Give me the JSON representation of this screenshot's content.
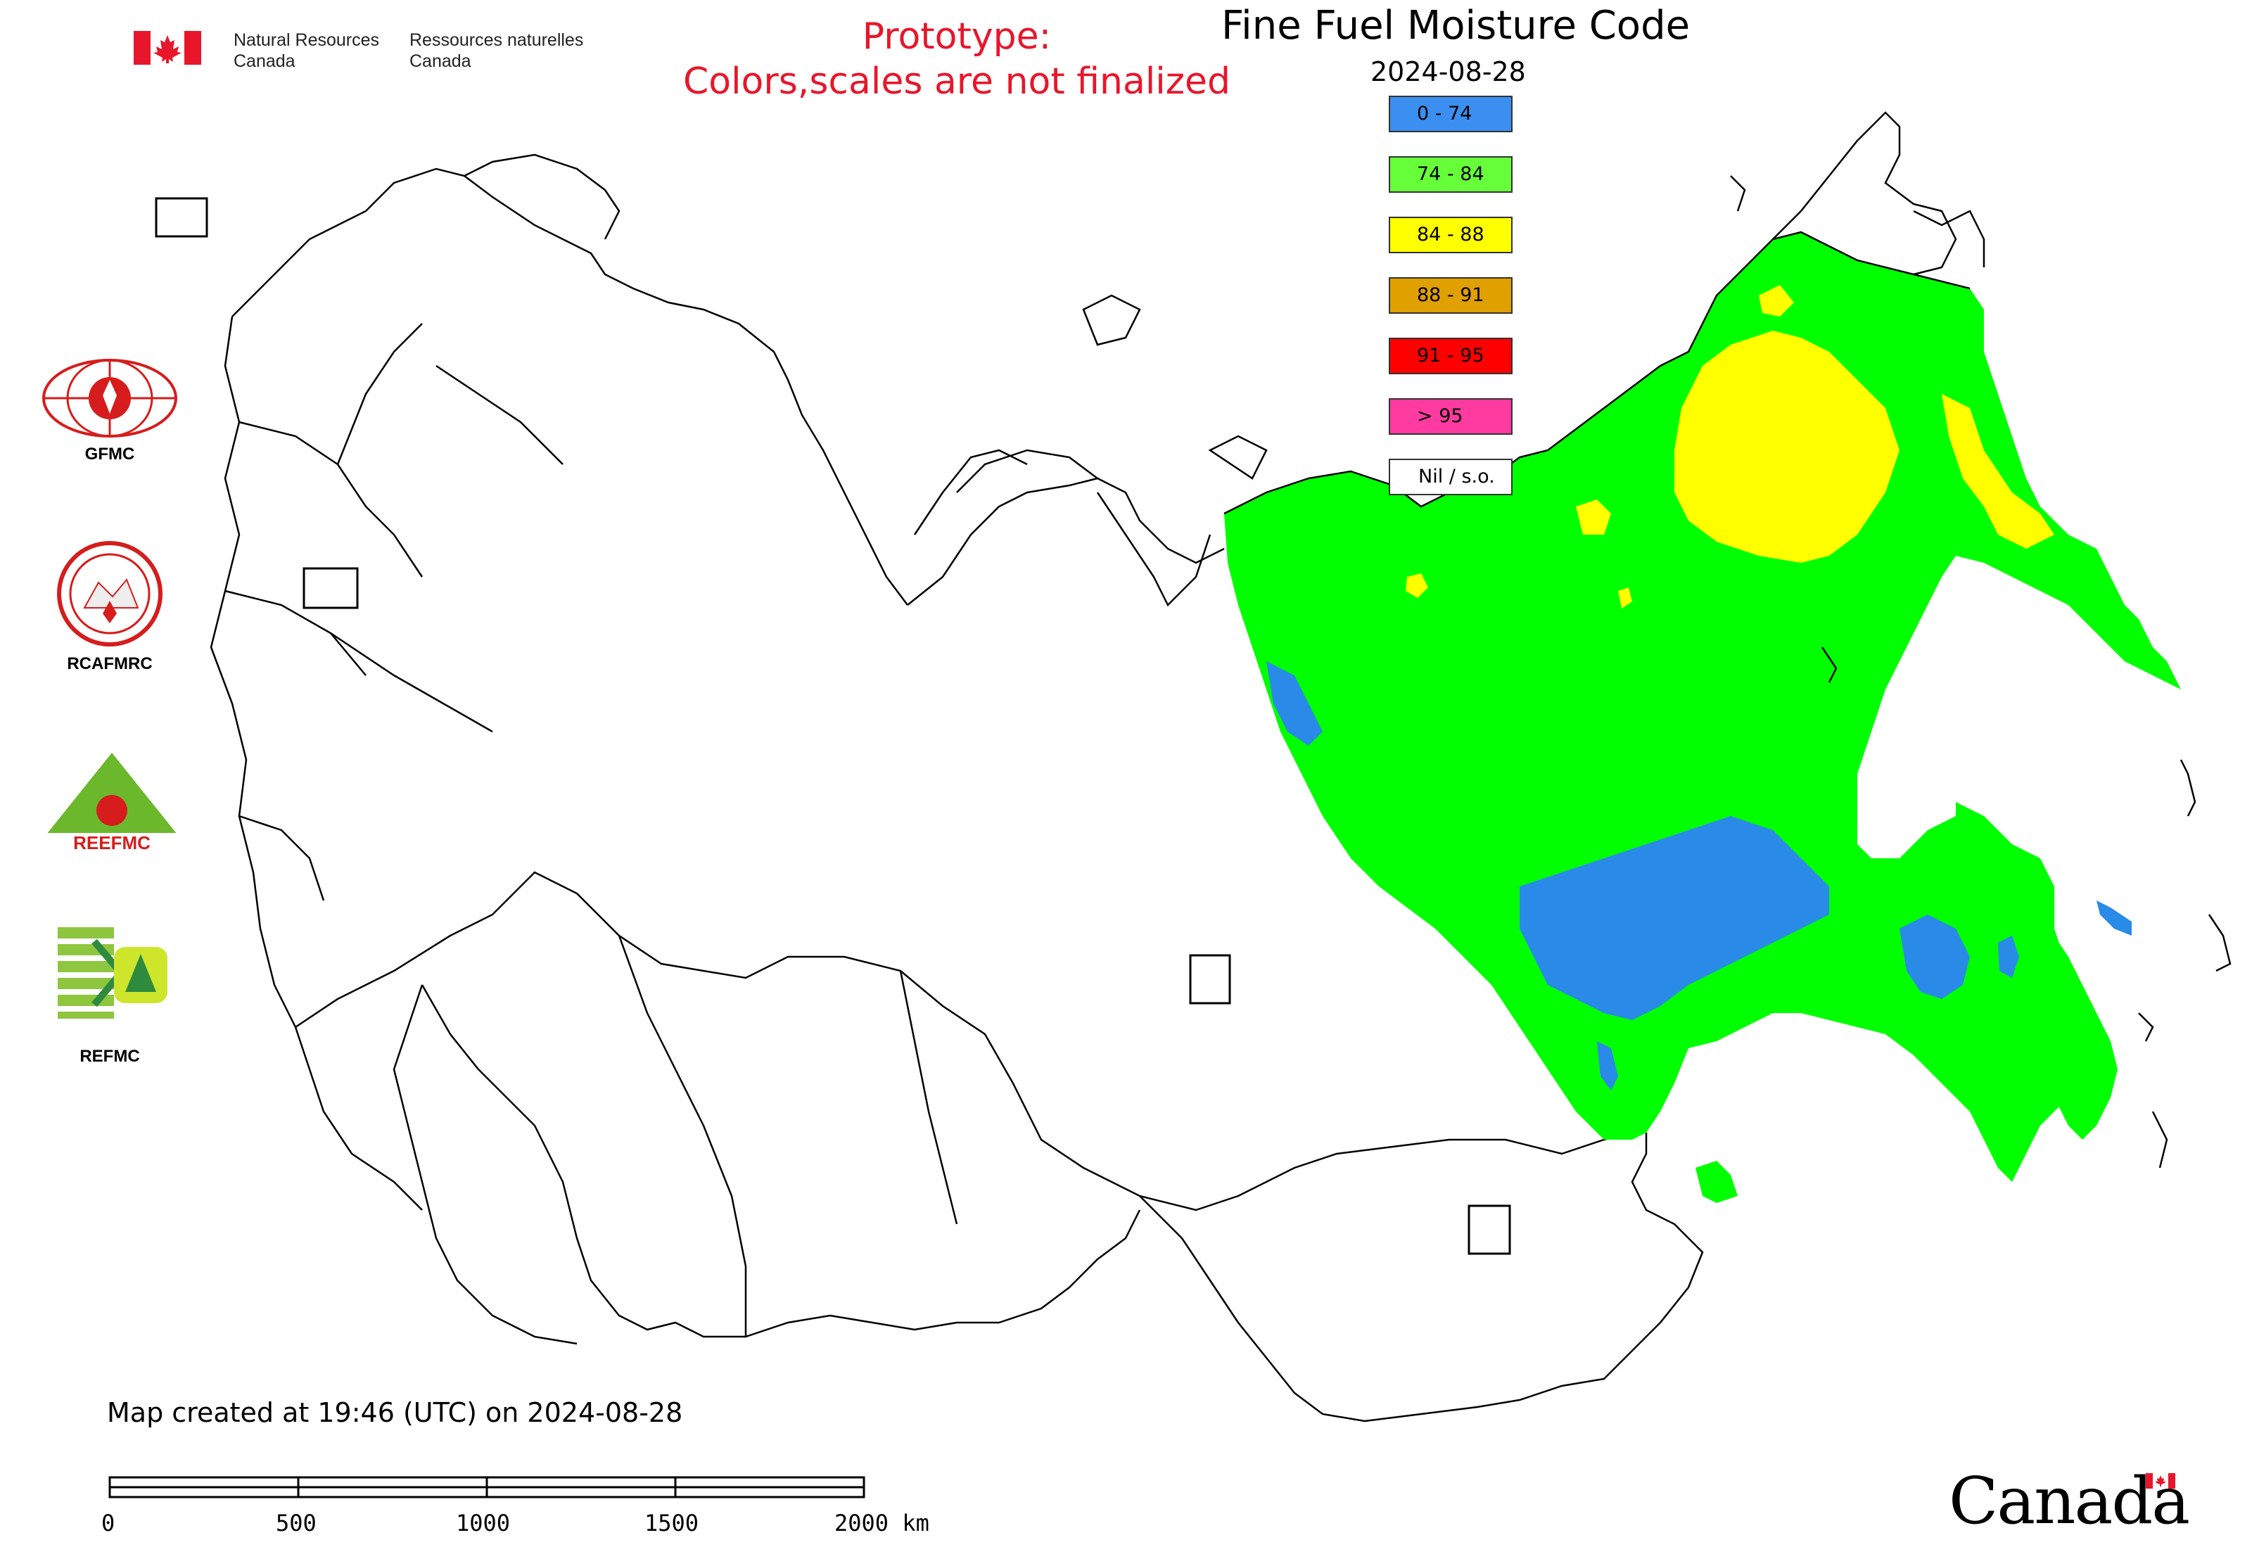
{
  "header": {
    "org_en_line1": "Natural Resources",
    "org_en_line2": "Canada",
    "org_fr_line1": "Ressources naturelles",
    "org_fr_line2": "Canada",
    "prototype_line1": "Prototype:",
    "prototype_line2": "Colors,scales are not finalized"
  },
  "map": {
    "title": "Fine Fuel Moisture Code",
    "date": "2024-08-28",
    "created_text": "Map created at 19:46 (UTC) on 2024-08-28"
  },
  "legend": [
    {
      "label": "0 - 74",
      "color": "#3a8ff0"
    },
    {
      "label": "74 - 84",
      "color": "#66ff3a"
    },
    {
      "label": "84 - 88",
      "color": "#ffff00"
    },
    {
      "label": "88 - 91",
      "color": "#e0a000"
    },
    {
      "label": "91 - 95",
      "color": "#ff0000"
    },
    {
      "label": "> 95",
      "color": "#ff3aa0"
    },
    {
      "label": "Nil / s.o.",
      "color": "#ffffff"
    }
  ],
  "colors": {
    "fill_green": "#00ff00",
    "fill_yellow": "#ffff00",
    "fill_blue": "#2a8ae8",
    "boundary": "#000000",
    "accent_red": "#e8162b"
  },
  "logos": {
    "gfmc": "GFMC",
    "rcafmrc": "RCAFMRC",
    "reefmc": "REEFMC",
    "refmc": "REFMC"
  },
  "scale_bar": {
    "labels": [
      "0",
      "500",
      "1000",
      "1500",
      "2000 km"
    ]
  },
  "footer": {
    "wordmark": "Canada"
  }
}
